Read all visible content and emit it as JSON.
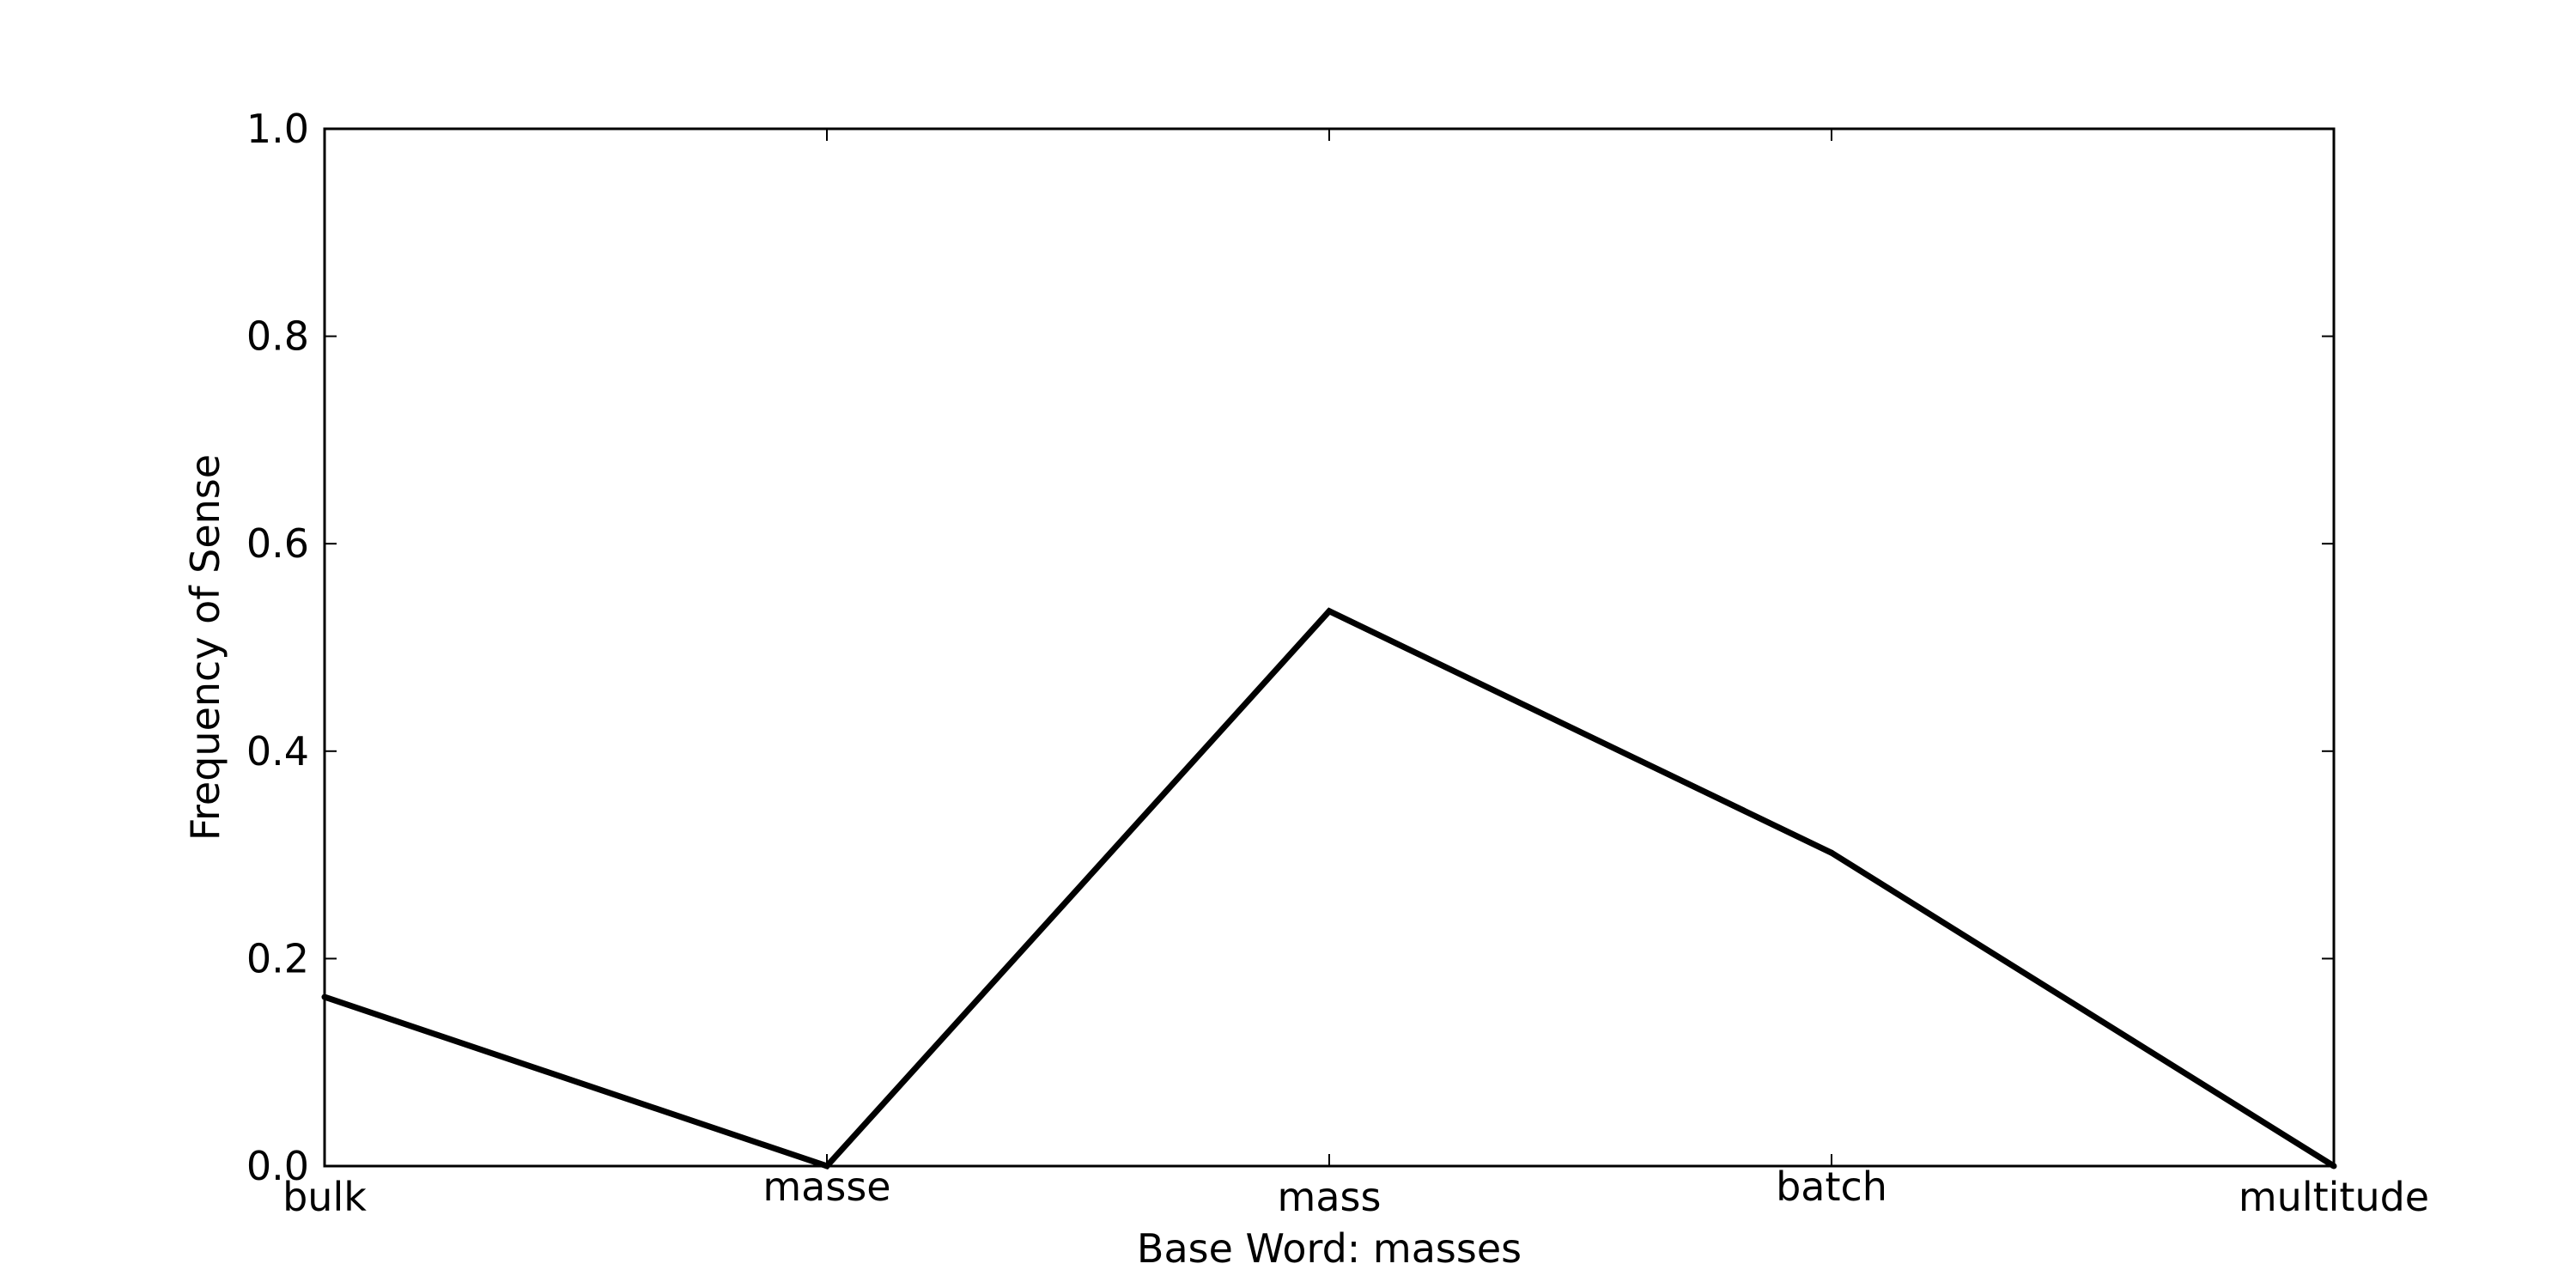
{
  "chart_data": {
    "type": "line",
    "title": "",
    "xlabel": "Base Word: masses",
    "ylabel": "Frequency of Sense",
    "categories": [
      "bulk",
      "masse",
      "mass",
      "batch",
      "multitude"
    ],
    "series": [
      {
        "values": [
          0.163,
          0.0,
          0.535,
          0.302,
          0.0
        ]
      }
    ],
    "ylim": [
      0,
      1
    ],
    "yticks": [
      "0.0",
      "0.2",
      "0.4",
      "0.6",
      "0.8",
      "1.0"
    ],
    "grid": false,
    "legend": "none",
    "line_color": "#000000"
  }
}
